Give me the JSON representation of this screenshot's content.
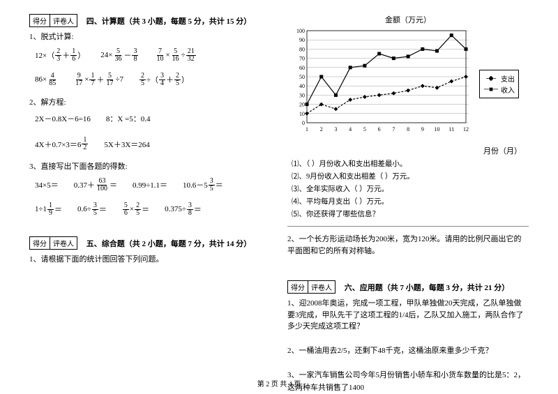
{
  "scorebox": {
    "c1": "得分",
    "c2": "评卷人"
  },
  "sec4": {
    "title": "四、计算题（共 3 小题，每题 5 分，共计 15 分）",
    "q1": "1、脱式计算:",
    "q2": "2、解方程:",
    "q3": "3、直接写出下面各题的得数:",
    "e1a_pre": "12×（",
    "e1a_mid": "＋",
    "e1a_post": "）",
    "e1b_pre": "24×",
    "e1b_mid": "－",
    "e1c_mid1": "×",
    "e1c_mid2": "÷",
    "e2a_pre": "86×",
    "e2b_mid1": "×",
    "e2b_mid2": "＋",
    "e2b_mid3": "÷7",
    "e2c_pre": "",
    "e2c_mid1": "÷（",
    "e2c_mid2": "＋",
    "e2c_post": "）",
    "eq1": "2X－0.8X－6=16",
    "eq2": "8：X  =5：0.4",
    "eq3_pre": "4X＋0.7×3＝6",
    "eq4": "5X＋3X＝264",
    "d1": "34×5＝",
    "d2_pre": "0.37＋",
    "d2_post": "＝",
    "d3": "0.99÷1.1＝",
    "d4_pre": "10.6－5",
    "d4_post": "＝",
    "d5_pre": "1÷1",
    "d5_post": "＝",
    "d6_pre": "0.6÷",
    "d6_post": "＝",
    "d7_mid": "×",
    "d7_post": "＝",
    "d8_pre": "0.375÷",
    "d8_post": "＝"
  },
  "sec5": {
    "title": "五、综合题（共 2 小题，每题 7 分，共计 14 分）",
    "q1": "1、请根据下面的统计图回答下列问题。"
  },
  "chart": {
    "title": "金额（万元）",
    "xaxis": "月份（月）",
    "legend1": "支出",
    "legend2": "收入",
    "ylim": [
      0,
      100
    ],
    "yticks": [
      0,
      10,
      20,
      30,
      40,
      50,
      60,
      70,
      80,
      90,
      100
    ],
    "xticks": [
      1,
      2,
      3,
      4,
      5,
      6,
      7,
      8,
      9,
      10,
      11,
      12
    ],
    "series_out": [
      10,
      20,
      15,
      25,
      28,
      30,
      32,
      35,
      40,
      38,
      45,
      50
    ],
    "series_in": [
      20,
      50,
      30,
      60,
      62,
      75,
      70,
      72,
      80,
      78,
      95,
      80
    ],
    "colors": {
      "grid": "#888888",
      "line": "#000000",
      "bg": "#ffffff"
    }
  },
  "sub5": {
    "s1": "⑴、（  ）月份收入和支出相差最小。",
    "s2": "⑵、9月份收入和支出相差（  ）万元。",
    "s3": "⑶、全年实际收入（  ）万元。",
    "s4": "⑷、平均每月支出（  ）万元。",
    "s5": "⑸、你还获得了哪些信息？"
  },
  "sec5q2": "2、一个长方形运动场长为200米，宽为120米。请用的比例尺画出它的平面图和它的所有对称轴。",
  "sec6": {
    "title": "六、应用题（共 7 小题，每题 3 分，共计 21 分）",
    "q1": "1、迎2008年奥运，完成一项工程，甲队单独做20天完成，乙队单独做要3完成，甲队先干了这项工程的1/4后，乙队又加入施工，两队合作了多少天完成这项工程？",
    "q2": "2、一桶油用去2/5，还剩下48千克，这桶油原来重多少千克？",
    "q3": "3、一家汽车销售公司今年5月份销售小轿车和小货车数量的比是5：2，这两种车共销售了1400"
  },
  "footer": "第 2 页 共 4 页",
  "fracs": {
    "f2_3": {
      "n": "2",
      "d": "3"
    },
    "f1_6": {
      "n": "1",
      "d": "6"
    },
    "f5_36": {
      "n": "5",
      "d": "36"
    },
    "f3_8": {
      "n": "3",
      "d": "8"
    },
    "f7_10": {
      "n": "7",
      "d": "10"
    },
    "f5_16": {
      "n": "5",
      "d": "16"
    },
    "f21_32": {
      "n": "21",
      "d": "32"
    },
    "f4_85": {
      "n": "4",
      "d": "85"
    },
    "f9_17": {
      "n": "9",
      "d": "17"
    },
    "f1_7": {
      "n": "1",
      "d": "7"
    },
    "f5_17": {
      "n": "5",
      "d": "17"
    },
    "f2_5": {
      "n": "2",
      "d": "5"
    },
    "f3_4": {
      "n": "3",
      "d": "4"
    },
    "f1_2": {
      "n": "1",
      "d": "2"
    },
    "f63_100": {
      "n": "63",
      "d": "100"
    },
    "f3_5": {
      "n": "3",
      "d": "5"
    },
    "f1_9": {
      "n": "1",
      "d": "9"
    },
    "f5_6": {
      "n": "5",
      "d": "6"
    }
  }
}
